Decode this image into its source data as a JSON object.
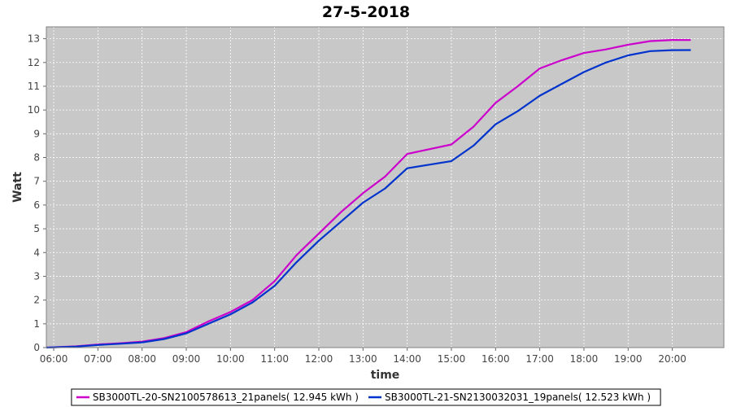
{
  "chart_data": {
    "type": "line",
    "title": "27-5-2018",
    "xlabel": "time",
    "ylabel": "Watt",
    "xlim": [
      "05:50",
      "21:10"
    ],
    "ylim": [
      0,
      13.5
    ],
    "x_ticks": [
      "06:00",
      "07:00",
      "08:00",
      "09:00",
      "10:00",
      "11:00",
      "12:00",
      "13:00",
      "14:00",
      "15:00",
      "16:00",
      "17:00",
      "18:00",
      "19:00",
      "20:00"
    ],
    "y_ticks": [
      0,
      1,
      2,
      3,
      4,
      5,
      6,
      7,
      8,
      9,
      10,
      11,
      12,
      13
    ],
    "grid": true,
    "background_color": "#c8c8c8",
    "legend_position": "bottom",
    "series": [
      {
        "name": "SB3000TL-20-SN2100578613_21panels( 12.945 kWh )",
        "color": "#cc00cc",
        "x": [
          "05:50",
          "06:30",
          "07:00",
          "07:30",
          "08:00",
          "08:30",
          "09:00",
          "09:30",
          "10:00",
          "10:30",
          "11:00",
          "11:30",
          "12:00",
          "12:30",
          "13:00",
          "13:30",
          "14:00",
          "14:30",
          "15:00",
          "15:30",
          "16:00",
          "16:30",
          "17:00",
          "17:30",
          "18:00",
          "18:30",
          "19:00",
          "19:30",
          "20:00",
          "20:25"
        ],
        "y": [
          0.0,
          0.05,
          0.13,
          0.18,
          0.25,
          0.4,
          0.65,
          1.1,
          1.5,
          2.0,
          2.8,
          3.9,
          4.8,
          5.7,
          6.5,
          7.2,
          8.15,
          8.35,
          8.55,
          9.3,
          10.3,
          11.0,
          11.75,
          12.1,
          12.4,
          12.55,
          12.75,
          12.9,
          12.95,
          12.945
        ]
      },
      {
        "name": "SB3000TL-21-SN2130032031_19panels( 12.523 kWh )",
        "color": "#0033cc",
        "x": [
          "05:50",
          "06:30",
          "07:00",
          "07:30",
          "08:00",
          "08:30",
          "09:00",
          "09:30",
          "10:00",
          "10:30",
          "11:00",
          "11:30",
          "12:00",
          "12:30",
          "13:00",
          "13:30",
          "14:00",
          "14:30",
          "15:00",
          "15:30",
          "16:00",
          "16:30",
          "17:00",
          "17:30",
          "18:00",
          "18:30",
          "19:00",
          "19:30",
          "20:00",
          "20:25"
        ],
        "y": [
          0.0,
          0.04,
          0.11,
          0.16,
          0.22,
          0.36,
          0.6,
          1.0,
          1.4,
          1.9,
          2.6,
          3.6,
          4.5,
          5.3,
          6.1,
          6.7,
          7.55,
          7.7,
          7.85,
          8.5,
          9.4,
          9.95,
          10.6,
          11.1,
          11.6,
          12.0,
          12.3,
          12.48,
          12.52,
          12.523
        ]
      }
    ]
  }
}
